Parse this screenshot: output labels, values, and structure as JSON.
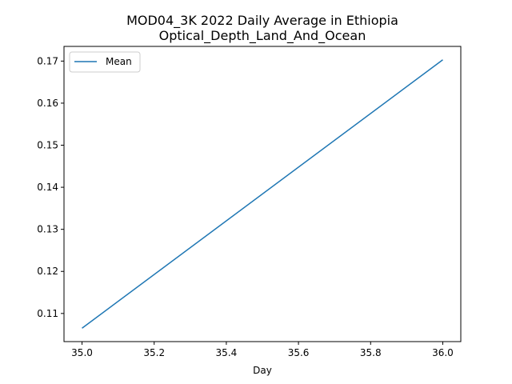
{
  "chart_data": {
    "type": "line",
    "title": "MOD04_3K 2022 Daily Average in Ethiopia",
    "subtitle": "Optical_Depth_Land_And_Ocean",
    "xlabel": "Day",
    "ylabel": "",
    "x": [
      35.0,
      36.0
    ],
    "series": [
      {
        "name": "Mean",
        "values": [
          0.1065,
          0.1703
        ],
        "color": "#1f77b4"
      }
    ],
    "xlim": [
      34.95,
      36.05
    ],
    "ylim": [
      0.10331,
      0.17349
    ],
    "xticks": [
      35.0,
      35.2,
      35.4,
      35.6,
      35.8,
      36.0
    ],
    "xtick_labels": [
      "35.0",
      "35.2",
      "35.4",
      "35.6",
      "35.8",
      "36.0"
    ],
    "yticks": [
      0.11,
      0.12,
      0.13,
      0.14,
      0.15,
      0.16,
      0.17
    ],
    "ytick_labels": [
      "0.11",
      "0.12",
      "0.13",
      "0.14",
      "0.15",
      "0.16",
      "0.17"
    ],
    "legend_position": "upper-left",
    "grid": false
  }
}
